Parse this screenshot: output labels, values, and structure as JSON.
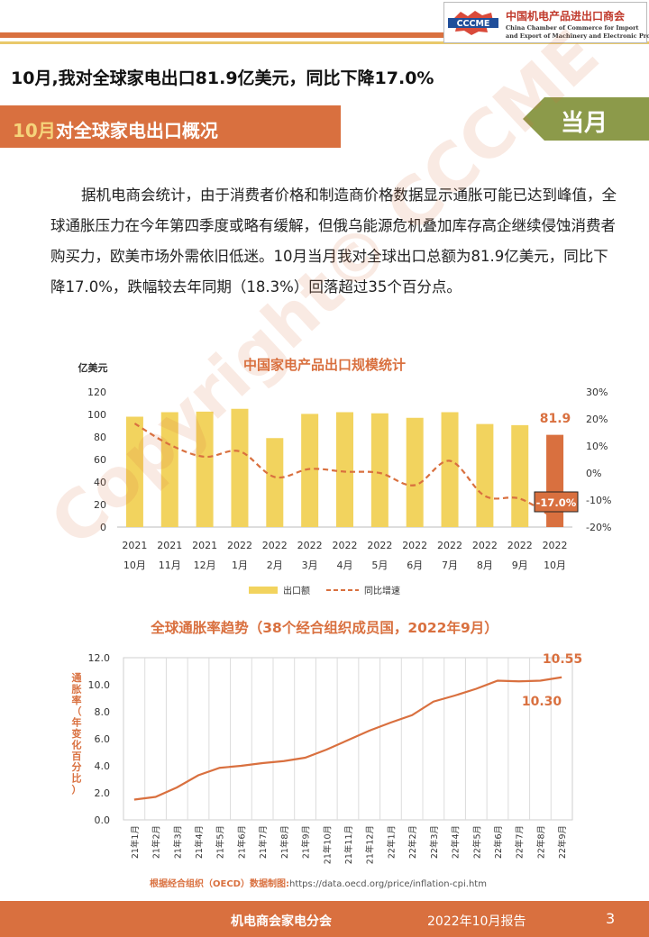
{
  "header": {
    "org_name_cn": "中国机电产品进出口商会",
    "org_name_en_line1": "China Chamber of Commerce for Import",
    "org_name_en_line2": "and Export of Machinery and Electronic Products",
    "logo_text": "CCCME"
  },
  "headline": "10月,我对全球家电出口81.9亿美元，同比下降17.0%",
  "section": {
    "title_highlight": "10月",
    "title_rest": "对全球家电出口概况",
    "tag": "当月"
  },
  "paragraph": "据机电商会统计，由于消费者价格和制造商价格数据显示通胀可能已达到峰值，全球通胀压力在今年第四季度或略有缓解，但俄乌能源危机叠加库存高企继续侵蚀消费者购买力，欧美市场外需依旧低迷。10月当月我对全球出口总额为81.9亿美元，同比下降17.0%，跌幅较去年同期（18.3%）回落超过35个百分点。",
  "watermark": "Copyright© CCCME",
  "chart_data": [
    {
      "type": "bar",
      "title": "中国家电产品出口规模统计",
      "ylabel": "亿美元",
      "ylim": [
        0,
        120
      ],
      "y_ticks": [
        "0",
        "20",
        "40",
        "60",
        "80",
        "100",
        "120"
      ],
      "y2lim": [
        -20,
        30
      ],
      "y2_ticks": [
        "-20%",
        "-10%",
        "0%",
        "10%",
        "20%",
        "30%"
      ],
      "categories": [
        [
          "2021",
          "10月"
        ],
        [
          "2021",
          "11月"
        ],
        [
          "2021",
          "12月"
        ],
        [
          "2022",
          "1月"
        ],
        [
          "2022",
          "2月"
        ],
        [
          "2022",
          "3月"
        ],
        [
          "2022",
          "4月"
        ],
        [
          "2022",
          "5月"
        ],
        [
          "2022",
          "6月"
        ],
        [
          "2022",
          "7月"
        ],
        [
          "2022",
          "8月"
        ],
        [
          "2022",
          "9月"
        ],
        [
          "2022",
          "10月"
        ]
      ],
      "series": [
        {
          "name": "出口额",
          "kind": "bar",
          "color": "#f2d35e",
          "highlight_color": "#d9703f",
          "values": [
            98,
            102,
            102.5,
            105,
            79,
            100.5,
            102,
            101,
            97,
            102,
            91.5,
            90.5,
            81.9
          ]
        },
        {
          "name": "同比增速",
          "kind": "line",
          "style": "dashed",
          "color": "#d9703f",
          "axis": "secondary",
          "values": [
            18.3,
            10.5,
            6,
            8,
            -1.5,
            1.5,
            0.5,
            0,
            -4.5,
            4.5,
            -8.5,
            -9.5,
            -17.0
          ]
        }
      ],
      "data_labels": {
        "last_bar": "81.9",
        "last_growth": "-17.0%"
      },
      "legend": "bottom"
    },
    {
      "type": "line",
      "title": "全球通胀率趋势（38个经合组织成员国，2022年9月）",
      "ylabel": "通胀率（年变化百分比）",
      "ylim": [
        0,
        12
      ],
      "y_ticks": [
        "0.0",
        "2.0",
        "4.0",
        "6.0",
        "8.0",
        "10.0",
        "12.0"
      ],
      "categories": [
        "21年1月",
        "21年2月",
        "21年3月",
        "21年4月",
        "21年5月",
        "21年6月",
        "21年7月",
        "21年8月",
        "21年9月",
        "21年10月",
        "21年11月",
        "21年12月",
        "22年1月",
        "22年2月",
        "22年3月",
        "22年4月",
        "22年5月",
        "22年6月",
        "22年7月",
        "22年8月",
        "22年9月"
      ],
      "values": [
        1.5,
        1.7,
        2.4,
        3.3,
        3.85,
        4.0,
        4.2,
        4.35,
        4.6,
        5.2,
        5.9,
        6.6,
        7.2,
        7.75,
        8.75,
        9.2,
        9.7,
        10.3,
        10.25,
        10.3,
        10.55
      ],
      "data_labels": {
        "peak": "10.30",
        "last": "10.55"
      },
      "color": "#d9703f"
    }
  ],
  "source": {
    "label": "根据经合组织（OECD）数据制图:",
    "url": "https://data.oecd.org/price/inflation-cpi.htm"
  },
  "footer": {
    "left": "机电商会家电分会",
    "center": "2022年10月报告",
    "page": "3"
  }
}
